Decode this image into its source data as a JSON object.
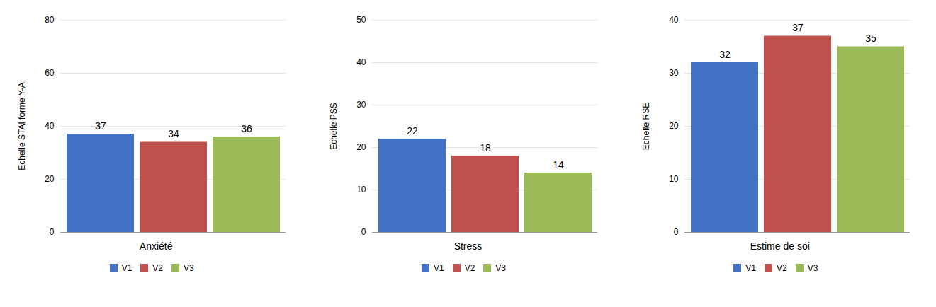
{
  "chart_data": [
    {
      "type": "bar",
      "xlabel": "Anxiété",
      "ylabel": "Echelle STAI forme Y-A",
      "categories": [
        null
      ],
      "series": [
        {
          "name": "V1",
          "color": "#4472C4",
          "values": [
            37
          ]
        },
        {
          "name": "V2",
          "color": "#C0504D",
          "values": [
            34
          ]
        },
        {
          "name": "V3",
          "color": "#9BBB59",
          "values": [
            36
          ]
        }
      ],
      "ylim": [
        0,
        80
      ],
      "yticks": [
        0,
        20,
        40,
        60,
        80
      ],
      "grid": true,
      "data_labels": true,
      "legend": "bottom",
      "tick_labels": "y"
    },
    {
      "type": "bar",
      "xlabel": "Stress",
      "ylabel": "Echelle PSS",
      "categories": [
        null
      ],
      "series": [
        {
          "name": "V1",
          "color": "#4472C4",
          "values": [
            22
          ]
        },
        {
          "name": "V2",
          "color": "#C0504D",
          "values": [
            18
          ]
        },
        {
          "name": "V3",
          "color": "#9BBB59",
          "values": [
            14
          ]
        }
      ],
      "ylim": [
        0,
        50
      ],
      "yticks": [
        0,
        10,
        20,
        30,
        40,
        50
      ],
      "grid": true,
      "data_labels": true,
      "legend": "bottom",
      "tick_labels": "y"
    },
    {
      "type": "bar",
      "xlabel": "Estime de soi",
      "ylabel": "Echelle RSE",
      "categories": [
        null
      ],
      "series": [
        {
          "name": "V1",
          "color": "#4472C4",
          "values": [
            32
          ]
        },
        {
          "name": "V2",
          "color": "#C0504D",
          "values": [
            37
          ]
        },
        {
          "name": "V3",
          "color": "#9BBB59",
          "values": [
            35
          ]
        }
      ],
      "ylim": [
        0,
        40
      ],
      "yticks": [
        0,
        10,
        20,
        30,
        40
      ],
      "grid": true,
      "data_labels": true,
      "legend": "bottom",
      "tick_labels": "y"
    }
  ]
}
